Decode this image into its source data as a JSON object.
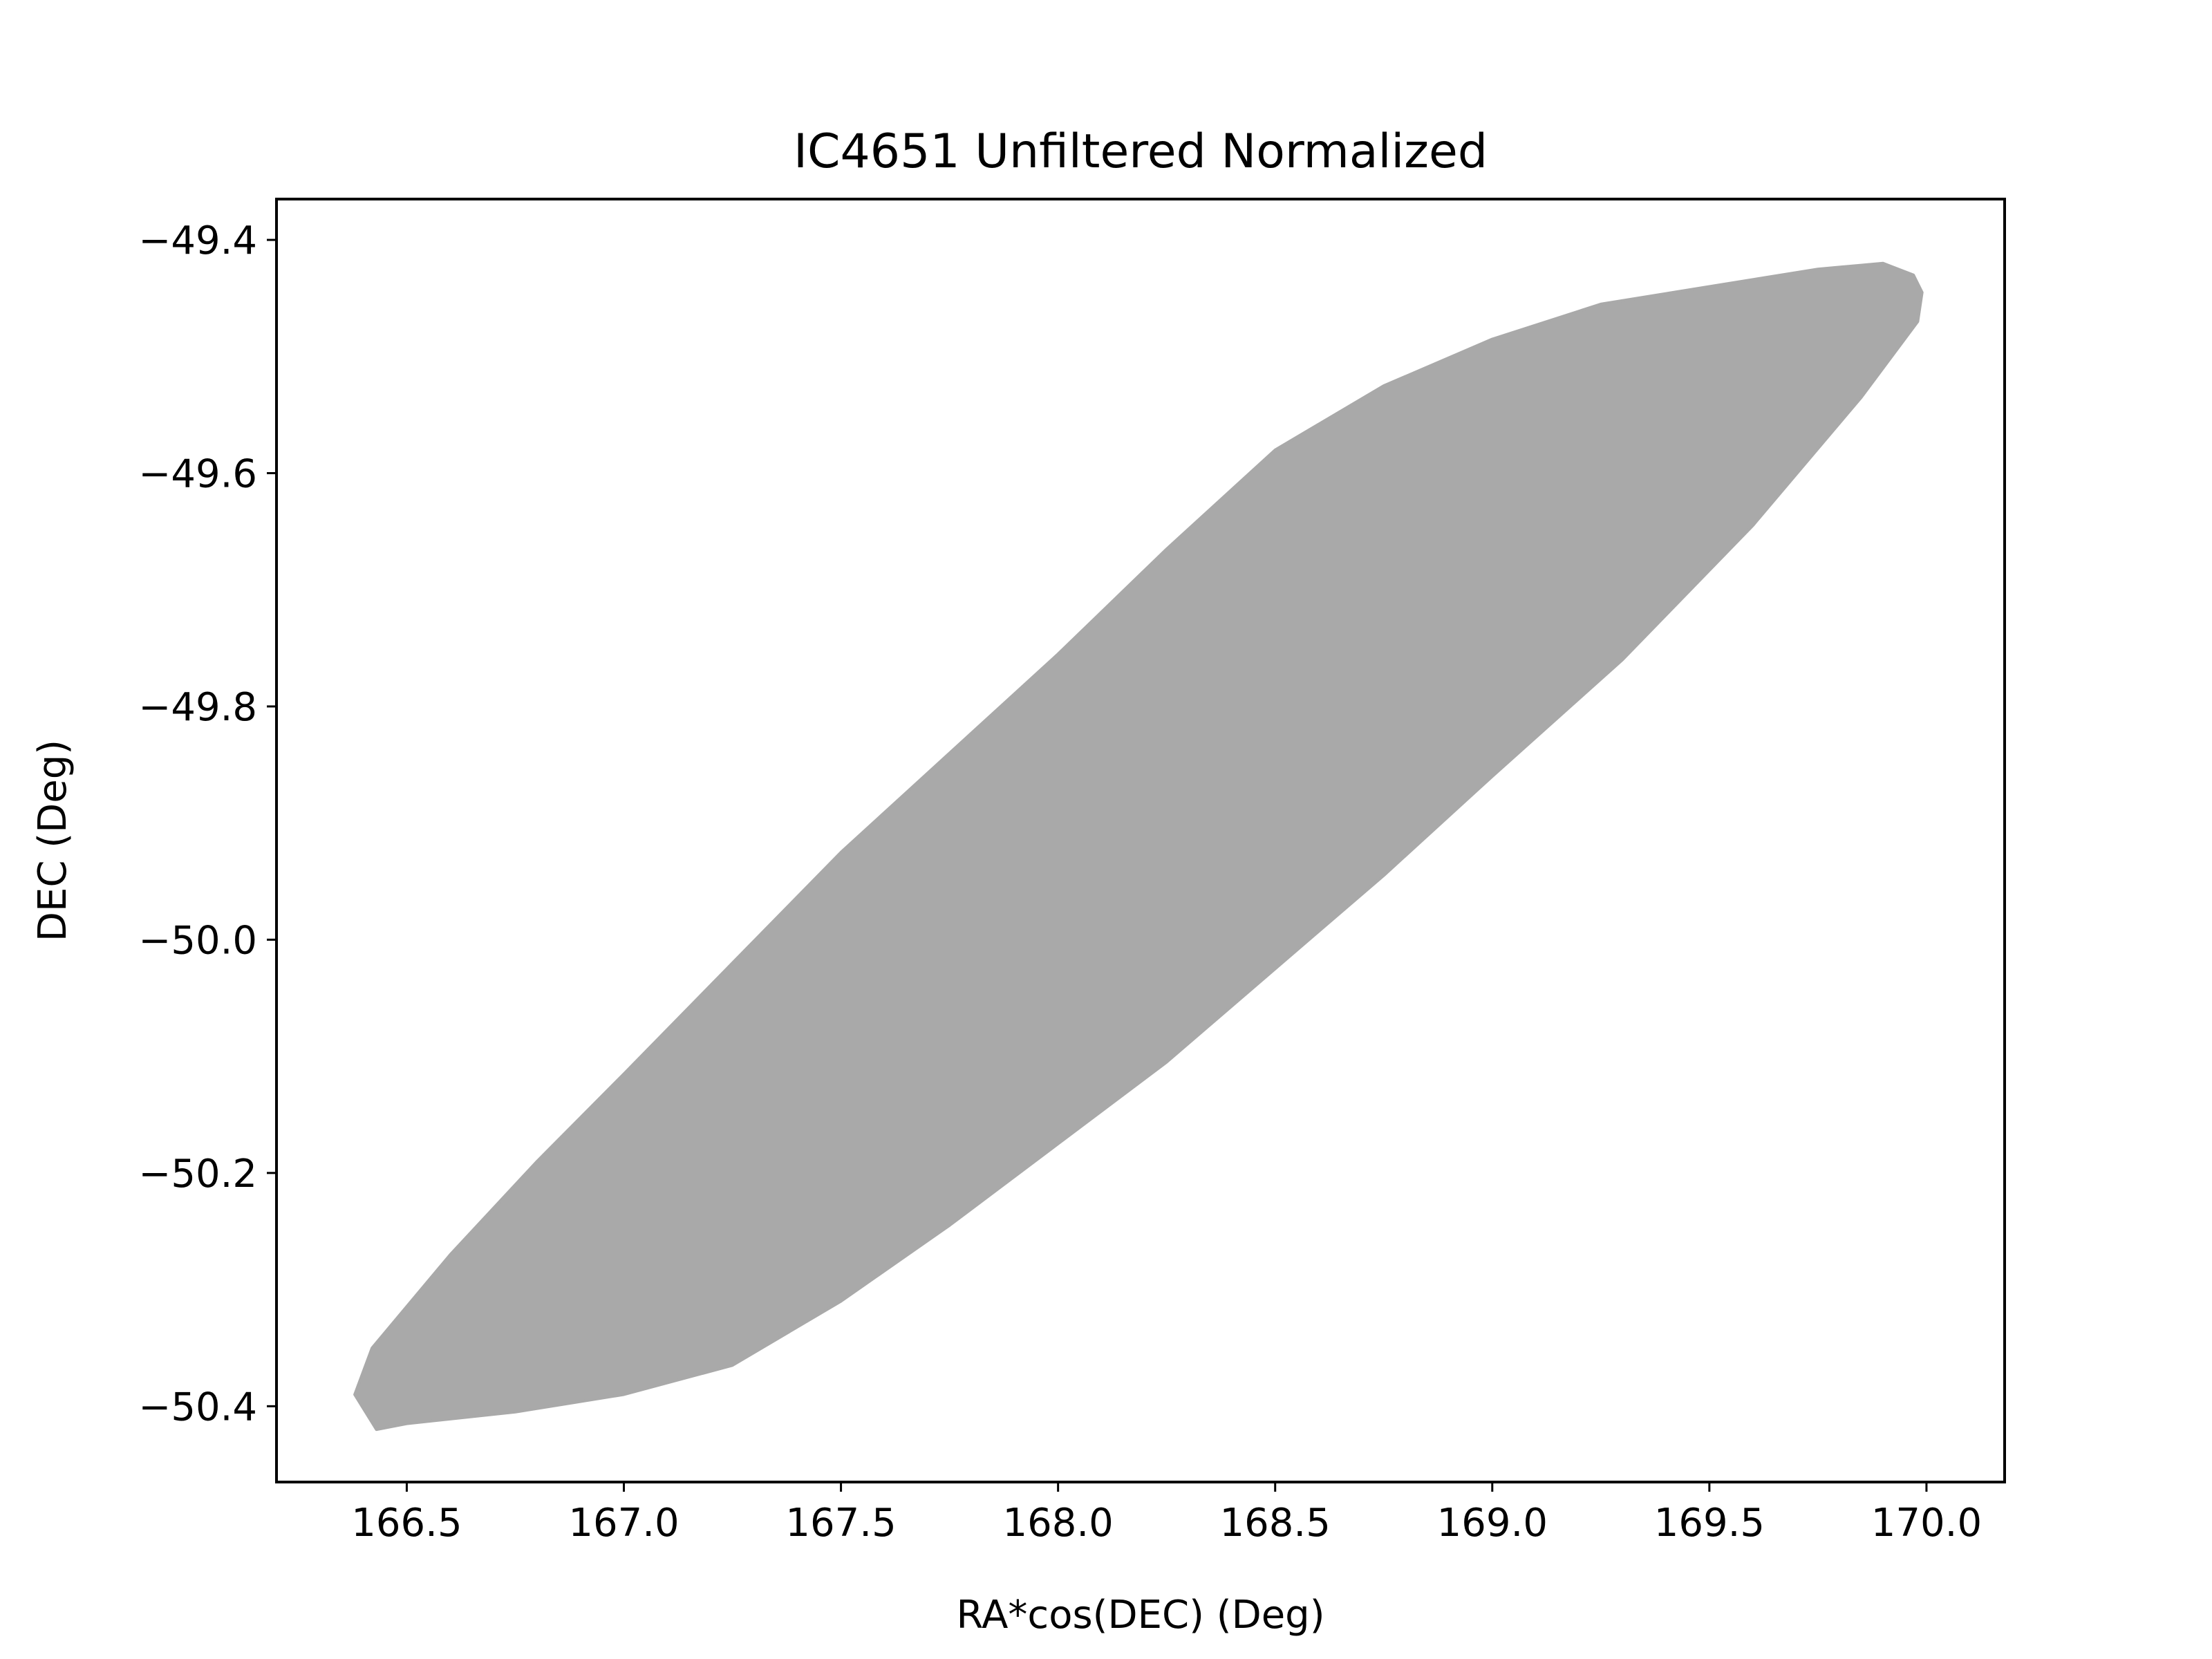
{
  "chart_data": {
    "type": "scatter",
    "title": "IC4651 Unfiltered Normalized",
    "xlabel": "RA*cos(DEC) (Deg)",
    "ylabel": "DEC (Deg)",
    "xlim": [
      166.2,
      170.18
    ],
    "ylim": [
      -50.465,
      -49.365
    ],
    "xticks": [
      166.5,
      167.0,
      167.5,
      168.0,
      168.5,
      169.0,
      169.5,
      170.0
    ],
    "xtick_labels": [
      "166.5",
      "167.0",
      "167.5",
      "168.0",
      "168.5",
      "169.0",
      "169.5",
      "170.0"
    ],
    "yticks": [
      -49.4,
      -49.6,
      -49.8,
      -50.0,
      -50.2,
      -50.4
    ],
    "ytick_labels": [
      "−49.4",
      "−49.6",
      "−49.8",
      "−50.0",
      "−50.2",
      "−50.4"
    ],
    "grid": false,
    "series": [
      {
        "color": "#a9a9a9",
        "shape": "filled ellipse (dense point cloud)",
        "center": [
          168.19,
          -49.915
        ],
        "outline": [
          [
            166.43,
            -50.42
          ],
          [
            166.38,
            -50.39
          ],
          [
            166.42,
            -50.35
          ],
          [
            166.6,
            -50.27
          ],
          [
            166.8,
            -50.19
          ],
          [
            167.0,
            -50.115
          ],
          [
            167.25,
            -50.02
          ],
          [
            167.5,
            -49.925
          ],
          [
            167.75,
            -49.84
          ],
          [
            168.0,
            -49.755
          ],
          [
            168.25,
            -49.665
          ],
          [
            168.5,
            -49.58
          ],
          [
            168.75,
            -49.525
          ],
          [
            169.0,
            -49.485
          ],
          [
            169.25,
            -49.455
          ],
          [
            169.5,
            -49.44
          ],
          [
            169.75,
            -49.425
          ],
          [
            169.9,
            -49.42
          ],
          [
            169.97,
            -49.43
          ],
          [
            169.99,
            -49.445
          ],
          [
            169.98,
            -49.47
          ],
          [
            169.85,
            -49.535
          ],
          [
            169.6,
            -49.645
          ],
          [
            169.3,
            -49.76
          ],
          [
            169.0,
            -49.86
          ],
          [
            168.75,
            -49.945
          ],
          [
            168.5,
            -50.025
          ],
          [
            168.25,
            -50.105
          ],
          [
            168.0,
            -50.175
          ],
          [
            167.75,
            -50.245
          ],
          [
            167.5,
            -50.31
          ],
          [
            167.25,
            -50.365
          ],
          [
            167.0,
            -50.39
          ],
          [
            166.75,
            -50.405
          ],
          [
            166.5,
            -50.415
          ],
          [
            166.43,
            -50.42
          ]
        ]
      }
    ]
  }
}
